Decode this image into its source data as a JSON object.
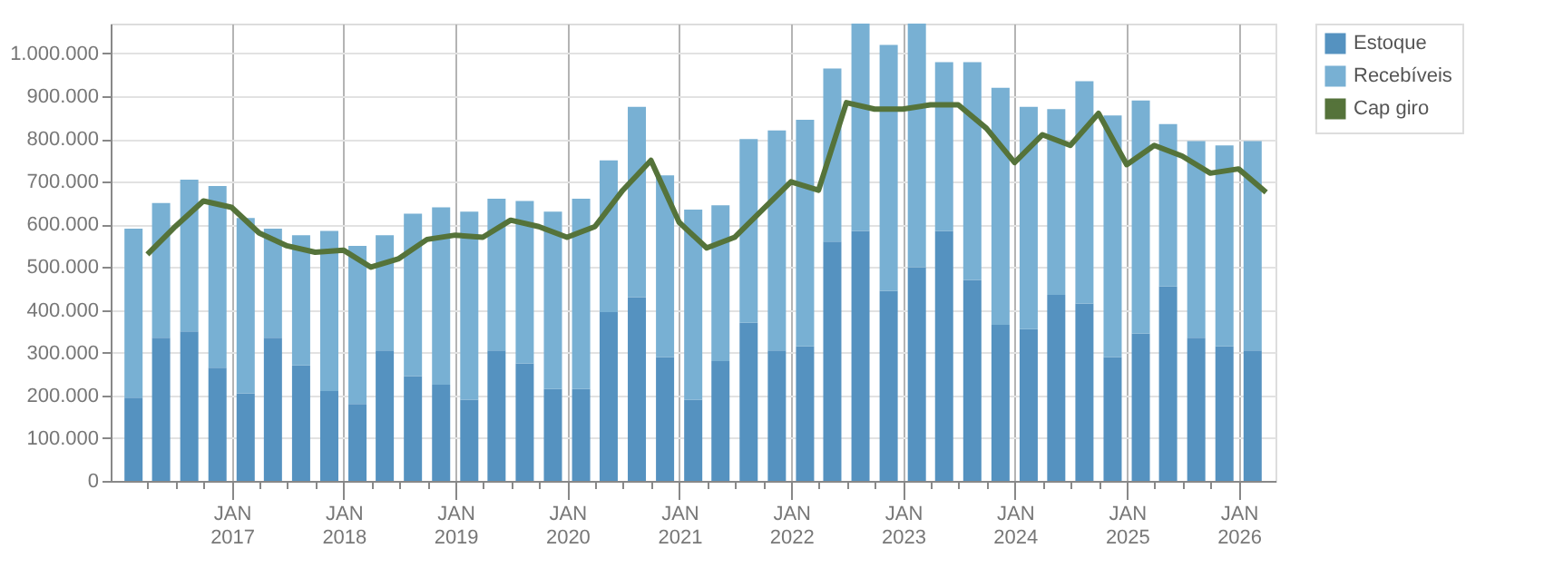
{
  "chart_data": {
    "type": "bar",
    "stacked": true,
    "x": [
      "2016-02-15",
      "2016-05-15",
      "2016-08-15",
      "2016-11-15",
      "2017-02-15",
      "2017-05-15",
      "2017-08-15",
      "2017-11-15",
      "2018-02-15",
      "2018-05-15",
      "2018-08-15",
      "2018-11-15",
      "2019-02-15",
      "2019-05-15",
      "2019-08-15",
      "2019-11-15",
      "2020-02-15",
      "2020-05-15",
      "2020-08-15",
      "2020-11-15",
      "2021-02-15",
      "2021-05-15",
      "2021-08-15",
      "2021-11-15",
      "2022-02-15",
      "2022-05-15",
      "2022-08-15",
      "2022-11-15",
      "2023-02-15",
      "2023-05-15",
      "2023-08-15",
      "2023-11-15",
      "2024-02-15",
      "2024-05-15",
      "2024-08-15",
      "2024-11-15",
      "2025-02-15",
      "2025-05-15",
      "2025-08-15",
      "2025-11-15",
      "2026-02-15"
    ],
    "series": [
      {
        "name": "Estoque",
        "color": "#5592c0",
        "values": [
          195000,
          335000,
          350000,
          265000,
          205000,
          335000,
          270000,
          210000,
          180000,
          305000,
          245000,
          225000,
          190000,
          305000,
          275000,
          215000,
          215000,
          395000,
          430000,
          290000,
          190000,
          280000,
          370000,
          305000,
          315000,
          560000,
          585000,
          445000,
          500000,
          585000,
          470000,
          365000,
          355000,
          435000,
          415000,
          290000,
          345000,
          455000,
          335000,
          315000,
          305000
        ]
      },
      {
        "name": "Recebíveis",
        "color": "#78b0d3",
        "values": [
          395000,
          315000,
          355000,
          425000,
          410000,
          255000,
          305000,
          375000,
          370000,
          270000,
          380000,
          415000,
          440000,
          355000,
          380000,
          415000,
          445000,
          355000,
          445000,
          425000,
          445000,
          365000,
          430000,
          515000,
          530000,
          405000,
          485000,
          575000,
          570000,
          395000,
          510000,
          555000,
          520000,
          435000,
          520000,
          565000,
          545000,
          380000,
          460000,
          470000,
          490000
        ]
      },
      {
        "name": "Cap giro",
        "type": "line",
        "color": "#55733a",
        "x": [
          "2016-03-31",
          "2016-06-30",
          "2016-09-30",
          "2016-12-31",
          "2017-03-31",
          "2017-06-30",
          "2017-09-30",
          "2017-12-31",
          "2018-03-31",
          "2018-06-30",
          "2018-09-30",
          "2018-12-31",
          "2019-03-31",
          "2019-06-30",
          "2019-09-30",
          "2019-12-31",
          "2020-03-31",
          "2020-06-30",
          "2020-09-30",
          "2020-12-31",
          "2021-03-31",
          "2021-06-30",
          "2021-09-30",
          "2021-12-31",
          "2022-03-31",
          "2022-06-30",
          "2022-09-30",
          "2022-12-31",
          "2023-03-31",
          "2023-06-30",
          "2023-09-30",
          "2023-12-31",
          "2024-03-31",
          "2024-06-30",
          "2024-09-30",
          "2024-12-31",
          "2025-03-31",
          "2025-06-30",
          "2025-09-30",
          "2025-12-31",
          "2026-03-31"
        ],
        "values": [
          530000,
          595000,
          655000,
          640000,
          580000,
          550000,
          535000,
          540000,
          500000,
          520000,
          565000,
          575000,
          570000,
          610000,
          595000,
          570000,
          595000,
          680000,
          750000,
          605000,
          545000,
          570000,
          635000,
          700000,
          680000,
          885000,
          870000,
          870000,
          880000,
          880000,
          825000,
          745000,
          810000,
          785000,
          860000,
          740000,
          785000,
          760000,
          720000,
          730000,
          675000
        ]
      }
    ],
    "xlim": [
      "2016-01-01",
      "2026-04-01"
    ],
    "xticks": [
      {
        "value": "2016-04-01",
        "label": null
      },
      {
        "value": "2016-07-01",
        "label": null
      },
      {
        "value": "2016-10-01",
        "label": null
      },
      {
        "value": "2017-01-01",
        "label": "JAN 2017"
      },
      {
        "value": "2017-04-01",
        "label": null
      },
      {
        "value": "2017-07-01",
        "label": null
      },
      {
        "value": "2017-10-01",
        "label": null
      },
      {
        "value": "2018-01-01",
        "label": "JAN 2018"
      },
      {
        "value": "2018-04-01",
        "label": null
      },
      {
        "value": "2018-07-01",
        "label": null
      },
      {
        "value": "2018-10-01",
        "label": null
      },
      {
        "value": "2019-01-01",
        "label": "JAN 2019"
      },
      {
        "value": "2019-04-01",
        "label": null
      },
      {
        "value": "2019-07-01",
        "label": null
      },
      {
        "value": "2019-10-01",
        "label": null
      },
      {
        "value": "2020-01-01",
        "label": "JAN 2020"
      },
      {
        "value": "2020-04-01",
        "label": null
      },
      {
        "value": "2020-07-01",
        "label": null
      },
      {
        "value": "2020-10-01",
        "label": null
      },
      {
        "value": "2021-01-01",
        "label": "JAN 2021"
      },
      {
        "value": "2021-04-01",
        "label": null
      },
      {
        "value": "2021-07-01",
        "label": null
      },
      {
        "value": "2021-10-01",
        "label": null
      },
      {
        "value": "2022-01-01",
        "label": "JAN 2022"
      },
      {
        "value": "2022-04-01",
        "label": null
      },
      {
        "value": "2022-07-01",
        "label": null
      },
      {
        "value": "2022-10-01",
        "label": null
      },
      {
        "value": "2023-01-01",
        "label": "JAN 2023"
      },
      {
        "value": "2023-04-01",
        "label": null
      },
      {
        "value": "2023-07-01",
        "label": null
      },
      {
        "value": "2023-10-01",
        "label": null
      },
      {
        "value": "2024-01-01",
        "label": "JAN 2024"
      },
      {
        "value": "2024-04-01",
        "label": null
      },
      {
        "value": "2024-07-01",
        "label": null
      },
      {
        "value": "2024-10-01",
        "label": null
      },
      {
        "value": "2025-01-01",
        "label": "JAN 2025"
      },
      {
        "value": "2025-04-01",
        "label": null
      },
      {
        "value": "2025-07-01",
        "label": null
      },
      {
        "value": "2025-10-01",
        "label": null
      },
      {
        "value": "2026-01-01",
        "label": "JAN 2026"
      }
    ],
    "ylim": [
      0,
      1070000
    ],
    "yticks": [
      {
        "value": 0,
        "label": "0"
      },
      {
        "value": 100000,
        "label": "100.000"
      },
      {
        "value": 200000,
        "label": "200.000"
      },
      {
        "value": 300000,
        "label": "300.000"
      },
      {
        "value": 400000,
        "label": "400.000"
      },
      {
        "value": 500000,
        "label": "500.000"
      },
      {
        "value": 600000,
        "label": "600.000"
      },
      {
        "value": 700000,
        "label": "700.000"
      },
      {
        "value": 800000,
        "label": "800.000"
      },
      {
        "value": 900000,
        "label": "900.000"
      },
      {
        "value": 1000000,
        "label": "1.000.000"
      }
    ],
    "grid": true,
    "legend": "top right",
    "line_style": "solid",
    "marker": "none"
  }
}
